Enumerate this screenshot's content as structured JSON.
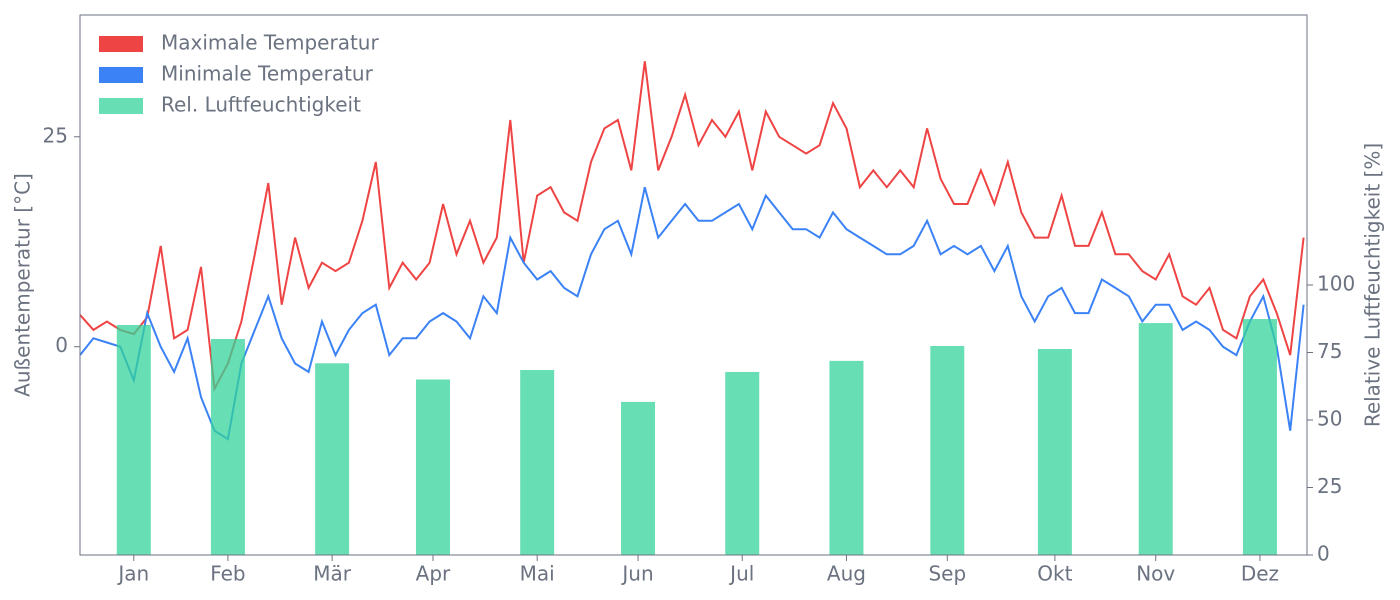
{
  "chart_data": {
    "type": "line",
    "ylabel": "Außentemperatur [°C]",
    "y2label": "Relative Luftfeuchtigkeit [%]",
    "legend": "upper left",
    "xlim": [
      0,
      365
    ],
    "xticks": [
      {
        "value": 16,
        "label": "Jan"
      },
      {
        "value": 44,
        "label": "Feb"
      },
      {
        "value": 75,
        "label": "Mär"
      },
      {
        "value": 105,
        "label": "Apr"
      },
      {
        "value": 136,
        "label": "Mai"
      },
      {
        "value": 166,
        "label": "Jun"
      },
      {
        "value": 197,
        "label": "Jul"
      },
      {
        "value": 228,
        "label": "Aug"
      },
      {
        "value": 258,
        "label": "Sep"
      },
      {
        "value": 290,
        "label": "Okt"
      },
      {
        "value": 320,
        "label": "Nov"
      },
      {
        "value": 351,
        "label": "Dez"
      }
    ],
    "ylim": [
      -24.8,
      39.5
    ],
    "yticks": [
      0,
      25
    ],
    "y2lim": [
      0,
      200
    ],
    "y2ticks": [
      0,
      25,
      50,
      75,
      100
    ],
    "x": [
      0,
      4,
      8,
      12,
      16,
      20,
      24,
      28,
      32,
      36,
      40,
      44,
      48,
      52,
      56,
      60,
      64,
      68,
      72,
      76,
      80,
      84,
      88,
      92,
      96,
      100,
      104,
      108,
      112,
      116,
      120,
      124,
      128,
      132,
      136,
      140,
      144,
      148,
      152,
      156,
      160,
      164,
      168,
      172,
      176,
      180,
      184,
      188,
      192,
      196,
      200,
      204,
      208,
      212,
      216,
      220,
      224,
      228,
      232,
      236,
      240,
      244,
      248,
      252,
      256,
      260,
      264,
      268,
      272,
      276,
      280,
      284,
      288,
      292,
      296,
      300,
      304,
      308,
      312,
      316,
      320,
      324,
      328,
      332,
      336,
      340,
      344,
      348,
      352,
      356,
      360,
      364
    ],
    "series": [
      {
        "name": "Maximale Temperatur",
        "color": "#ef4444",
        "type": "line",
        "values": [
          3.8,
          2,
          3,
          2,
          1.5,
          3.5,
          12,
          1,
          2,
          9.5,
          -5,
          -2,
          3,
          11,
          19.5,
          5,
          13,
          7,
          10,
          9,
          10,
          15,
          22,
          7,
          10,
          8,
          10,
          17,
          11,
          15,
          10,
          13,
          27,
          10,
          18,
          19,
          16,
          15,
          22,
          26,
          27,
          21,
          34,
          21,
          25,
          30,
          24,
          27,
          25,
          28,
          21,
          28,
          25,
          24,
          23,
          24,
          29,
          26,
          19,
          21,
          19,
          21,
          19,
          26,
          20,
          17,
          17,
          21,
          17,
          22,
          16,
          13,
          13,
          18,
          12,
          12,
          16,
          11,
          11,
          9,
          8,
          11,
          6,
          5,
          7,
          2,
          1,
          6,
          8,
          4,
          -1,
          13
        ]
      },
      {
        "name": "Minimale Temperatur",
        "color": "#3b82f6",
        "type": "line",
        "values": [
          -1,
          1,
          0.5,
          0,
          -4,
          4,
          0,
          -3,
          1,
          -6,
          -10,
          -11,
          -2,
          2,
          6,
          1,
          -2,
          -3,
          3,
          -1,
          2,
          4,
          5,
          -1,
          1,
          1,
          3,
          4,
          3,
          1,
          6,
          4,
          13,
          10,
          8,
          9,
          7,
          6,
          11,
          14,
          15,
          11,
          19,
          13,
          15,
          17,
          15,
          15,
          16,
          17,
          14,
          18,
          16,
          14,
          14,
          13,
          16,
          14,
          13,
          12,
          11,
          11,
          12,
          15,
          11,
          12,
          11,
          12,
          9,
          12,
          6,
          3,
          6,
          7,
          4,
          4,
          8,
          7,
          6,
          3,
          5,
          5,
          2,
          3,
          2,
          0,
          -1,
          3,
          6,
          0,
          -10,
          5
        ]
      },
      {
        "name": "Rel. Luftfeuchtigkeit",
        "color": "#34d399",
        "type": "bar",
        "axis": "y2",
        "x": [
          16,
          44,
          75,
          105,
          136,
          166,
          197,
          228,
          258,
          290,
          320,
          351
        ],
        "values": [
          85.2,
          80,
          71,
          65,
          68.5,
          56.7,
          67.8,
          71.9,
          77.4,
          76.3,
          85.9,
          87.4
        ]
      }
    ]
  }
}
